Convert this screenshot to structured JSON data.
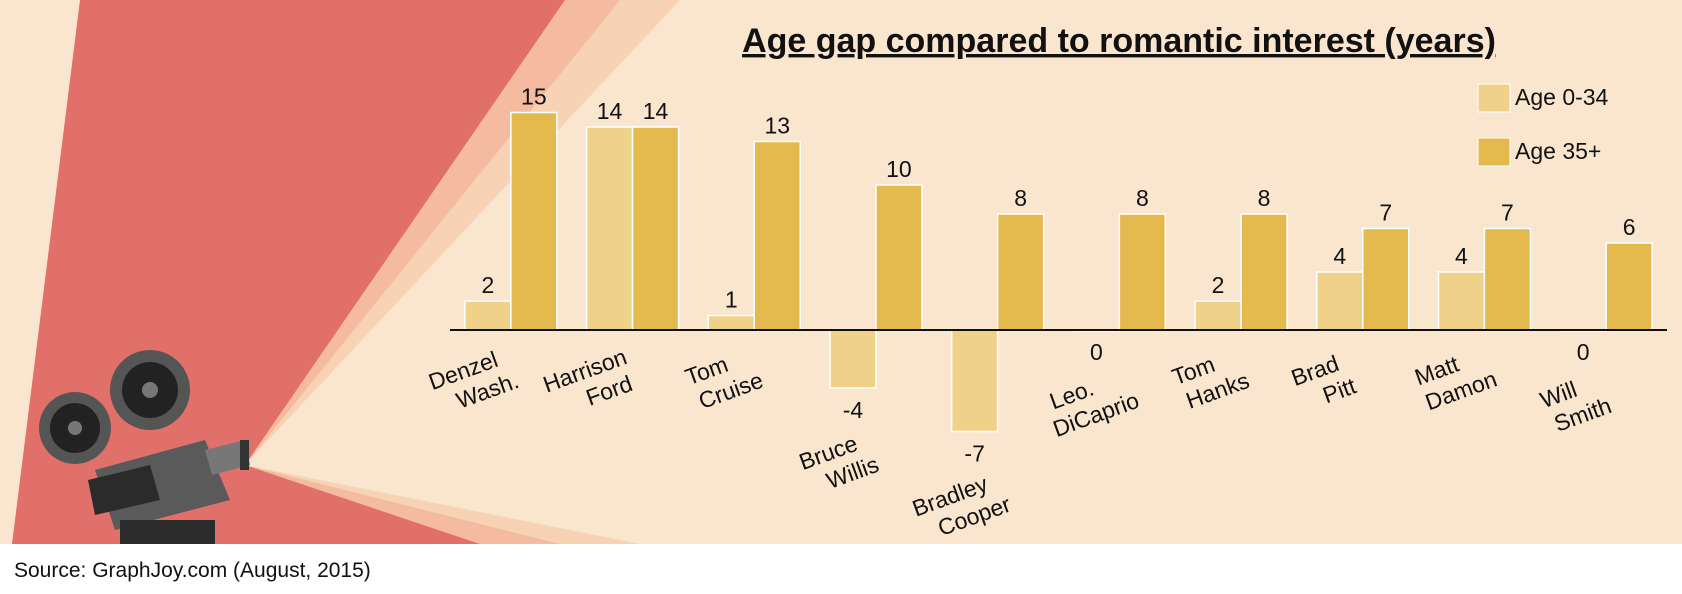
{
  "chart_data": {
    "type": "bar",
    "title": "Age gap compared to romantic interest (years)",
    "categories": [
      [
        "Denzel",
        "Wash."
      ],
      [
        "Harrison",
        "Ford"
      ],
      [
        "Tom",
        "Cruise"
      ],
      [
        "Bruce",
        "Willis"
      ],
      [
        "Bradley",
        "Cooper"
      ],
      [
        "Leo.",
        "DiCaprio"
      ],
      [
        "Tom",
        "Hanks"
      ],
      [
        "Brad",
        "Pitt"
      ],
      [
        "Matt",
        "Damon"
      ],
      [
        "Will",
        "Smith"
      ]
    ],
    "series": [
      {
        "name": "Age 0-34",
        "color": "#f0d18a",
        "values": [
          2,
          14,
          1,
          -4,
          -7,
          0,
          2,
          4,
          4,
          0
        ]
      },
      {
        "name": "Age 35+",
        "color": "#e4b94e",
        "values": [
          15,
          14,
          13,
          10,
          8,
          8,
          8,
          7,
          7,
          6
        ]
      }
    ],
    "ylim": [
      -8,
      16
    ],
    "legend": "upper right",
    "source": "Source: GraphJoy.com (August, 2015)"
  }
}
